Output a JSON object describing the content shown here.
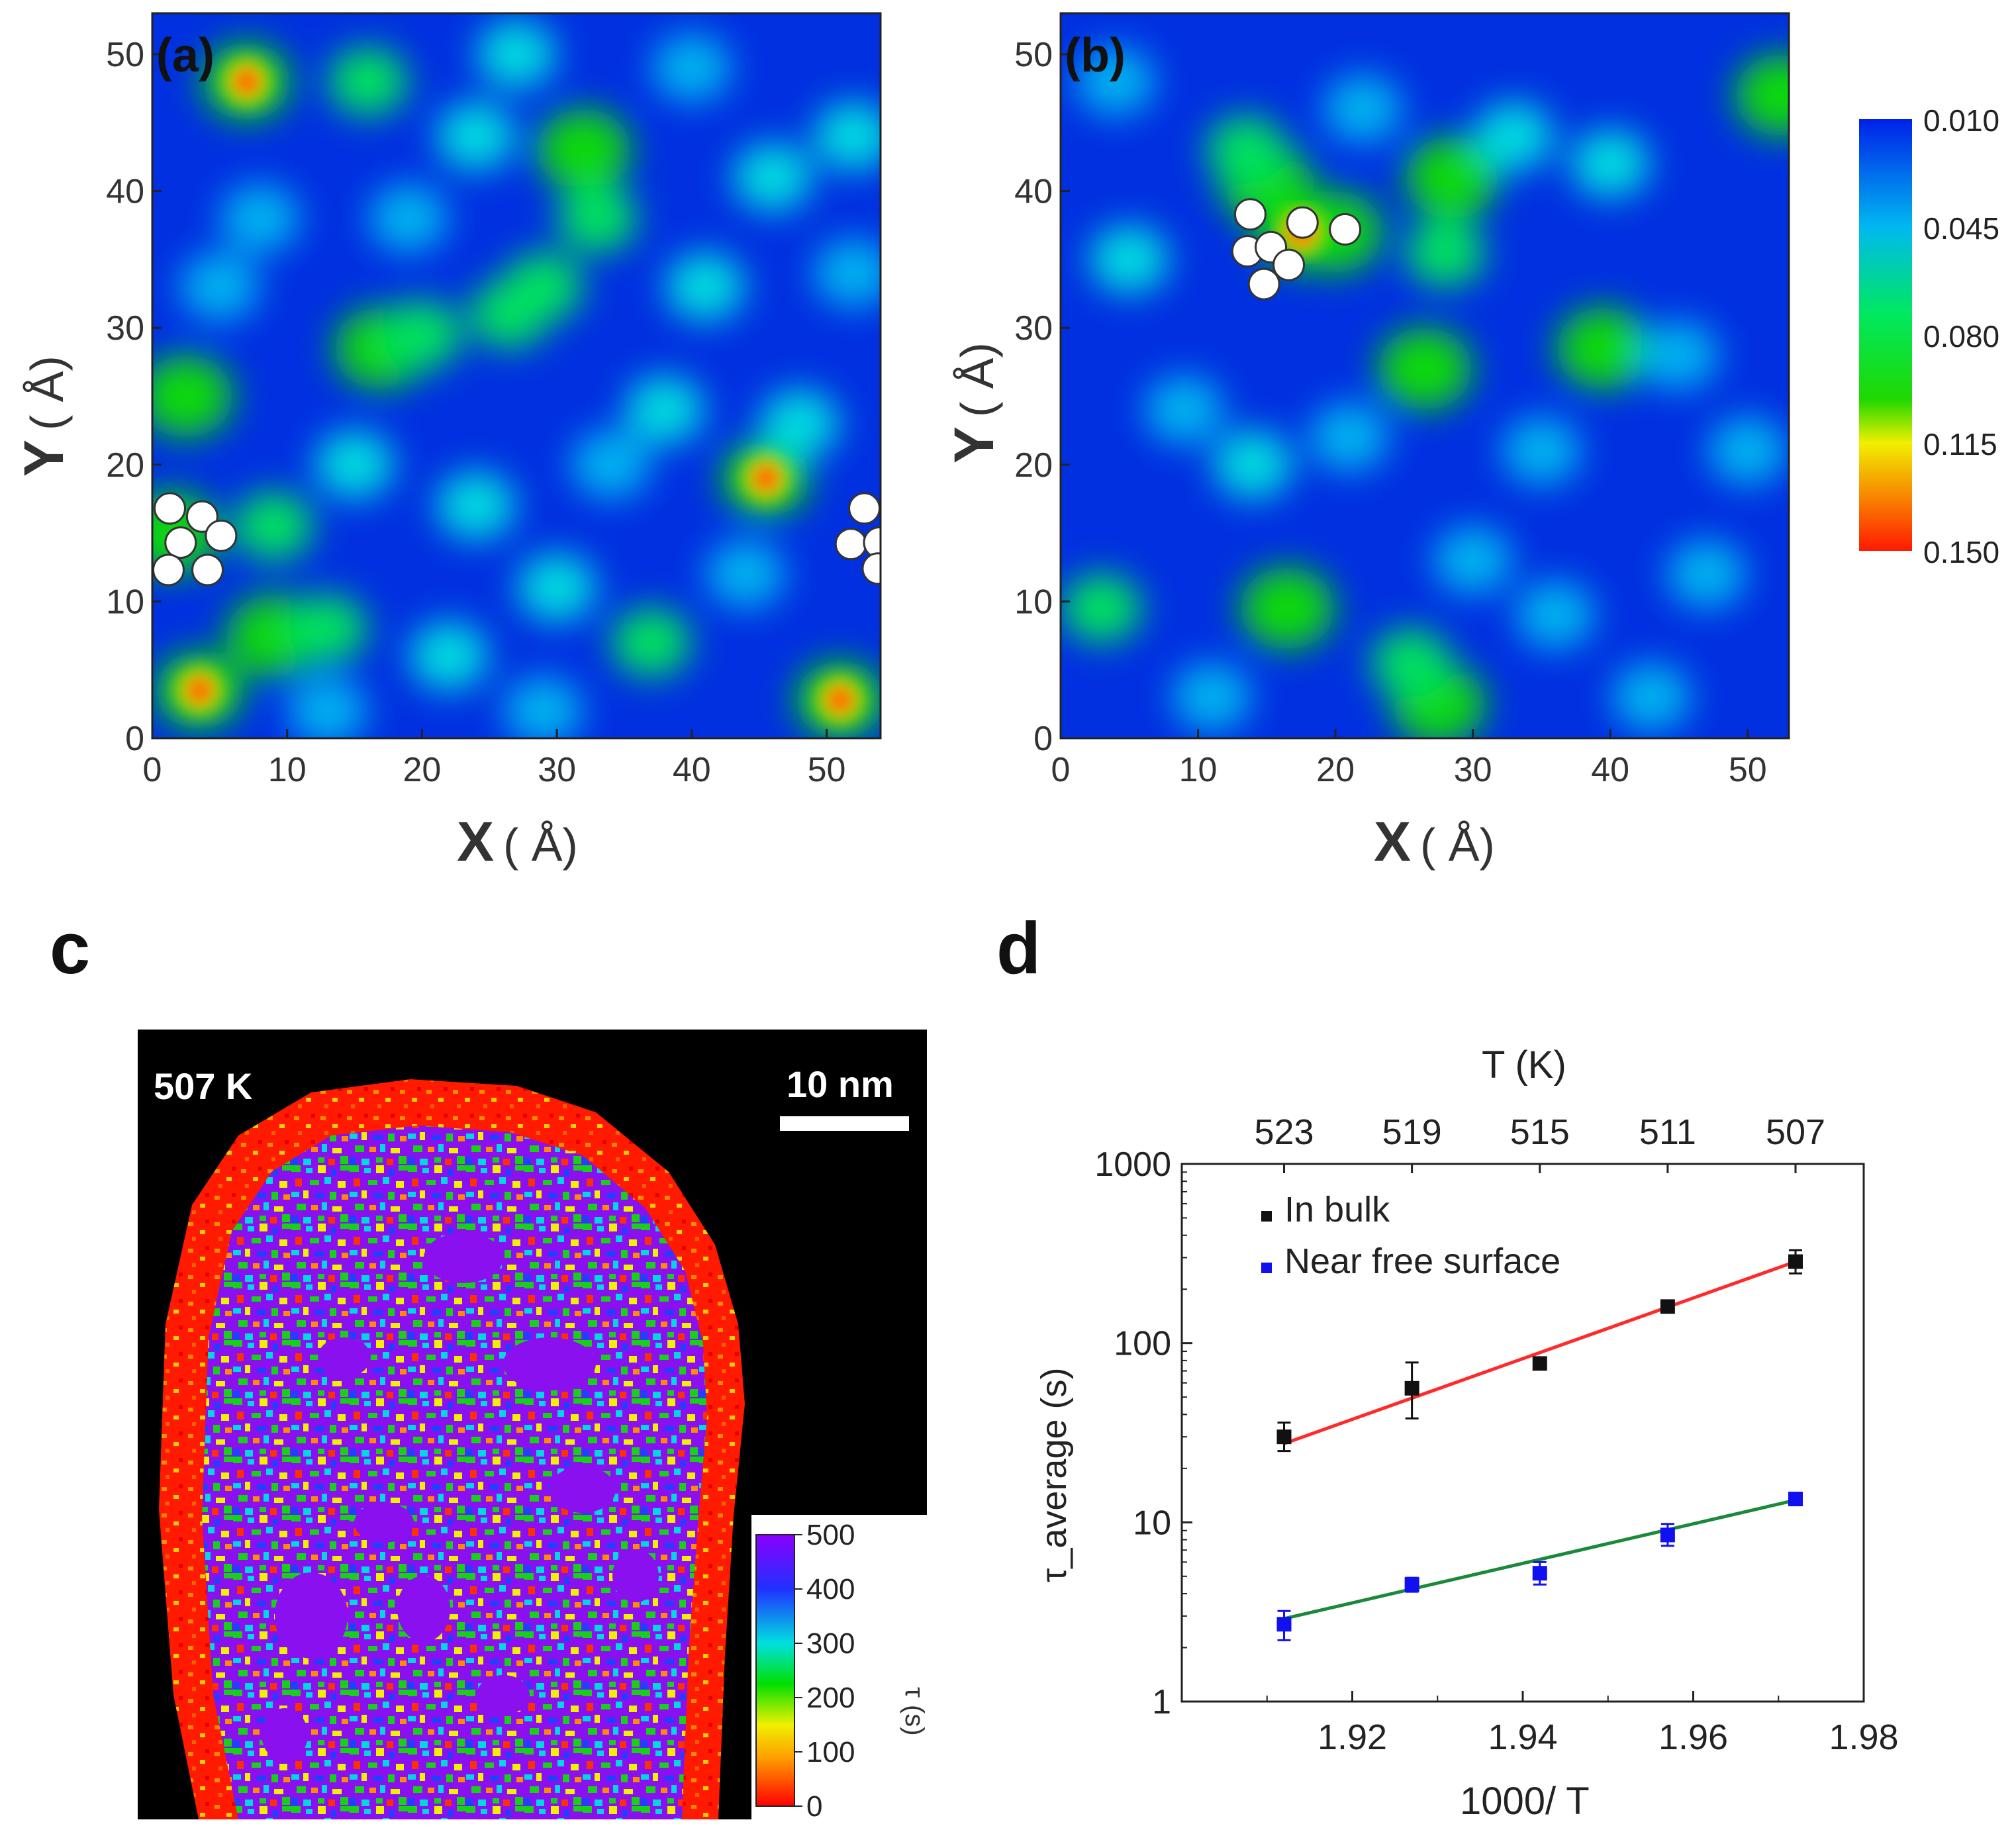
{
  "figure": {
    "panels": {
      "a": {
        "label": "(a)",
        "xlabel_main": "X",
        "xlabel_unit": "( Å)",
        "ylabel_main": "Y",
        "ylabel_unit": "( Å)"
      },
      "b": {
        "label": "(b)",
        "xlabel_main": "X",
        "xlabel_unit": "( Å)",
        "ylabel_main": "Y",
        "ylabel_unit": "( Å)"
      },
      "c": {
        "label": "c",
        "temperature": "507 K",
        "scale_bar": "10 nm",
        "colorbar_unit": "τ (s)"
      },
      "d": {
        "label": "d"
      }
    }
  },
  "chart_data": [
    {
      "type": "heatmap",
      "id": "a",
      "title": "(a)",
      "xlabel": "X ( Å)",
      "ylabel": "Y ( Å)",
      "xlim": [
        0,
        54
      ],
      "ylim": [
        0,
        53
      ],
      "xticks": [
        0,
        10,
        20,
        30,
        40,
        50
      ],
      "yticks": [
        0,
        10,
        20,
        30,
        40,
        50
      ],
      "colormap": [
        "#0028d8",
        "#00d8e8",
        "#00d020",
        "#f0f000",
        "#ff1a00"
      ],
      "hotspots": [
        {
          "x": 7,
          "y": 48,
          "value": 0.15
        },
        {
          "x": 45.5,
          "y": 19,
          "value": 0.15
        },
        {
          "x": 3.5,
          "y": 3.5,
          "value": 0.15
        },
        {
          "x": 51,
          "y": 2.8,
          "value": 0.15
        },
        {
          "x": 32,
          "y": 43,
          "value": 0.09
        },
        {
          "x": 33,
          "y": 38,
          "value": 0.08
        },
        {
          "x": 29,
          "y": 33,
          "value": 0.08
        },
        {
          "x": 17,
          "y": 28.5,
          "value": 0.085
        },
        {
          "x": 20,
          "y": 29.5,
          "value": 0.08
        },
        {
          "x": 2.5,
          "y": 25,
          "value": 0.085
        },
        {
          "x": 9,
          "y": 7.5,
          "value": 0.085
        },
        {
          "x": 13,
          "y": 8,
          "value": 0.08
        },
        {
          "x": 1.5,
          "y": 15,
          "value": 0.09
        },
        {
          "x": 37,
          "y": 7,
          "value": 0.07
        },
        {
          "x": 9,
          "y": 15.5,
          "value": 0.07
        },
        {
          "x": 26.5,
          "y": 31,
          "value": 0.07
        },
        {
          "x": 16,
          "y": 48,
          "value": 0.07
        },
        {
          "x": 24,
          "y": 44,
          "value": 0.055
        },
        {
          "x": 48,
          "y": 23,
          "value": 0.065
        },
        {
          "x": 15,
          "y": 20,
          "value": 0.055
        },
        {
          "x": 38,
          "y": 24,
          "value": 0.06
        },
        {
          "x": 22,
          "y": 6,
          "value": 0.055
        },
        {
          "x": 30,
          "y": 11,
          "value": 0.065
        },
        {
          "x": 41,
          "y": 33,
          "value": 0.055
        },
        {
          "x": 46,
          "y": 41,
          "value": 0.055
        },
        {
          "x": 52,
          "y": 44,
          "value": 0.06
        },
        {
          "x": 8,
          "y": 38,
          "value": 0.05
        },
        {
          "x": 5,
          "y": 33,
          "value": 0.05
        },
        {
          "x": 19,
          "y": 38,
          "value": 0.05
        },
        {
          "x": 24,
          "y": 17,
          "value": 0.06
        },
        {
          "x": 34,
          "y": 20,
          "value": 0.05
        },
        {
          "x": 13,
          "y": 2,
          "value": 0.05
        },
        {
          "x": 29,
          "y": 2,
          "value": 0.05
        },
        {
          "x": 44,
          "y": 12,
          "value": 0.05
        },
        {
          "x": 52,
          "y": 34,
          "value": 0.05
        },
        {
          "x": 40,
          "y": 49,
          "value": 0.05
        },
        {
          "x": 27,
          "y": 50,
          "value": 0.055
        }
      ],
      "cluster_atoms": [
        {
          "x": 1.3,
          "y": 16.8
        },
        {
          "x": 3.7,
          "y": 16.2
        },
        {
          "x": 5.1,
          "y": 14.8
        },
        {
          "x": 2.1,
          "y": 14.3
        },
        {
          "x": 1.2,
          "y": 12.3
        },
        {
          "x": 4.1,
          "y": 12.3
        },
        {
          "x": 52.8,
          "y": 16.8
        },
        {
          "x": 51.8,
          "y": 14.2
        },
        {
          "x": 53.9,
          "y": 14.3
        },
        {
          "x": 53.8,
          "y": 12.4
        }
      ]
    },
    {
      "type": "heatmap",
      "id": "b",
      "title": "(b)",
      "xlabel": "X ( Å)",
      "ylabel": "Y ( Å)",
      "xlim": [
        0,
        53
      ],
      "ylim": [
        0,
        53
      ],
      "xticks": [
        0,
        10,
        20,
        30,
        40,
        50
      ],
      "yticks": [
        0,
        10,
        20,
        30,
        40,
        50
      ],
      "colormap": [
        "#0028d8",
        "#00d8e8",
        "#00d020",
        "#f0f000",
        "#ff1a00"
      ],
      "hotspots": [
        {
          "x": 17.5,
          "y": 37,
          "value": 0.15
        },
        {
          "x": 15,
          "y": 40.5,
          "value": 0.09
        },
        {
          "x": 13.5,
          "y": 43,
          "value": 0.08
        },
        {
          "x": 20,
          "y": 37,
          "value": 0.1
        },
        {
          "x": 28.5,
          "y": 41,
          "value": 0.095
        },
        {
          "x": 28,
          "y": 35.5,
          "value": 0.075
        },
        {
          "x": 26.5,
          "y": 27,
          "value": 0.09
        },
        {
          "x": 39.5,
          "y": 28.5,
          "value": 0.09
        },
        {
          "x": 16.5,
          "y": 9.5,
          "value": 0.09
        },
        {
          "x": 27.5,
          "y": 2.5,
          "value": 0.085
        },
        {
          "x": 25.5,
          "y": 5.5,
          "value": 0.075
        },
        {
          "x": 3,
          "y": 9.5,
          "value": 0.075
        },
        {
          "x": 52.5,
          "y": 47,
          "value": 0.085
        },
        {
          "x": 5,
          "y": 35,
          "value": 0.06
        },
        {
          "x": 14,
          "y": 20,
          "value": 0.06
        },
        {
          "x": 33,
          "y": 44,
          "value": 0.055
        },
        {
          "x": 22,
          "y": 46,
          "value": 0.05
        },
        {
          "x": 40,
          "y": 42,
          "value": 0.055
        },
        {
          "x": 45,
          "y": 28,
          "value": 0.05
        },
        {
          "x": 21,
          "y": 22,
          "value": 0.05
        },
        {
          "x": 9,
          "y": 24,
          "value": 0.05
        },
        {
          "x": 30,
          "y": 13,
          "value": 0.05
        },
        {
          "x": 11,
          "y": 3,
          "value": 0.05
        },
        {
          "x": 36,
          "y": 9,
          "value": 0.05
        },
        {
          "x": 47,
          "y": 12,
          "value": 0.05
        },
        {
          "x": 43,
          "y": 3,
          "value": 0.05
        },
        {
          "x": 50,
          "y": 21,
          "value": 0.05
        },
        {
          "x": 4,
          "y": 48,
          "value": 0.05
        },
        {
          "x": 35,
          "y": 21,
          "value": 0.045
        }
      ],
      "cluster_atoms": [
        {
          "x": 13.8,
          "y": 38.3
        },
        {
          "x": 17.6,
          "y": 37.7
        },
        {
          "x": 20.7,
          "y": 37.2
        },
        {
          "x": 13.6,
          "y": 35.6
        },
        {
          "x": 15.3,
          "y": 35.9
        },
        {
          "x": 16.6,
          "y": 34.6
        },
        {
          "x": 14.8,
          "y": 33.2
        }
      ]
    },
    {
      "type": "colorbar",
      "id": "ab-colorbar",
      "ticks": [
        "0.010",
        "0.045",
        "0.080",
        "0.115",
        "0.150"
      ],
      "range": [
        0.01,
        0.15
      ],
      "colors": [
        "#0020e8",
        "#00b8f0",
        "#00e860",
        "#20d800",
        "#f0f000",
        "#ff1a00"
      ]
    },
    {
      "type": "heatmap",
      "id": "c",
      "title": "507 K",
      "scale_bar": "10 nm",
      "colorbar_label": "τ (s)",
      "colorbar_ticks": [
        0,
        100,
        200,
        300,
        400,
        500
      ],
      "colorbar_range": [
        0,
        500
      ],
      "colormap": [
        "#ff0000",
        "#ffa000",
        "#f0f000",
        "#00e000",
        "#00e0e0",
        "#2030ff",
        "#8a00ff"
      ]
    },
    {
      "type": "scatter",
      "id": "d",
      "xlabel": "1000/ T",
      "ylabel": "τ_average (s)",
      "top_xlabel": "T (K)",
      "yscale": "log",
      "xlim": [
        1.9,
        1.98
      ],
      "ylim": [
        1,
        1000
      ],
      "xticks": [
        1.92,
        1.94,
        1.96,
        1.98
      ],
      "xticklabels": [
        "1.92",
        "1.94",
        "1.96",
        "1.98"
      ],
      "yticks": [
        1,
        10,
        100,
        1000
      ],
      "yticklabels": [
        "1",
        "10",
        "100",
        "1000"
      ],
      "top_ticks": [
        {
          "x": 1.912,
          "label": "523"
        },
        {
          "x": 1.927,
          "label": "519"
        },
        {
          "x": 1.942,
          "label": "515"
        },
        {
          "x": 1.957,
          "label": "511"
        },
        {
          "x": 1.972,
          "label": "507"
        }
      ],
      "series": [
        {
          "name": "In bulk",
          "color": "#111111",
          "fit_color": "#ff2a2a",
          "x": [
            1.912,
            1.927,
            1.942,
            1.957,
            1.972
          ],
          "y": [
            30,
            56,
            77,
            160,
            285
          ],
          "err_low": [
            25,
            38,
            72,
            151,
            245
          ],
          "err_high": [
            36,
            78,
            83,
            169,
            330
          ],
          "fit": [
            [
              1.912,
              27.5
            ],
            [
              1.972,
              285
            ]
          ]
        },
        {
          "name": "Near free surface",
          "color": "#1010f0",
          "fit_color": "#1a8a3a",
          "x": [
            1.912,
            1.927,
            1.942,
            1.957,
            1.972
          ],
          "y": [
            2.7,
            4.5,
            5.2,
            8.5,
            13.5
          ],
          "err_low": [
            2.2,
            4.1,
            4.5,
            7.4,
            12.8
          ],
          "err_high": [
            3.2,
            4.9,
            6.0,
            9.8,
            14.2
          ],
          "fit": [
            [
              1.912,
              2.9
            ],
            [
              1.972,
              13.3
            ]
          ]
        }
      ]
    }
  ]
}
